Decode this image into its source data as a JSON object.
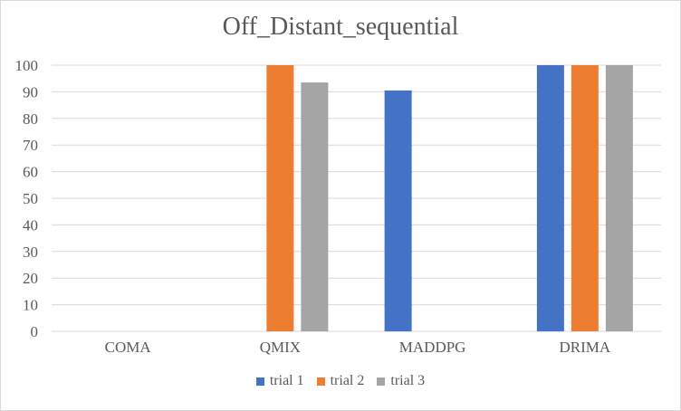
{
  "chart_data": {
    "type": "bar",
    "title": "Off_Distant_sequential",
    "xlabel": "",
    "ylabel": "",
    "categories": [
      "COMA",
      "QMIX",
      "MADDPG",
      "DRIMA"
    ],
    "series": [
      {
        "name": "trial 1",
        "color": "#4472C4",
        "values": [
          0,
          0,
          90.5,
          100
        ]
      },
      {
        "name": "trial 2",
        "color": "#ED7D31",
        "values": [
          0,
          100,
          0,
          100
        ]
      },
      {
        "name": "trial 3",
        "color": "#A5A5A5",
        "values": [
          0,
          93.5,
          0,
          100
        ]
      }
    ],
    "ylim": [
      0,
      100
    ],
    "yticks": [
      "0",
      "10",
      "20",
      "30",
      "40",
      "50",
      "60",
      "70",
      "80",
      "90",
      "100"
    ],
    "grid": true,
    "legend_position": "bottom"
  }
}
